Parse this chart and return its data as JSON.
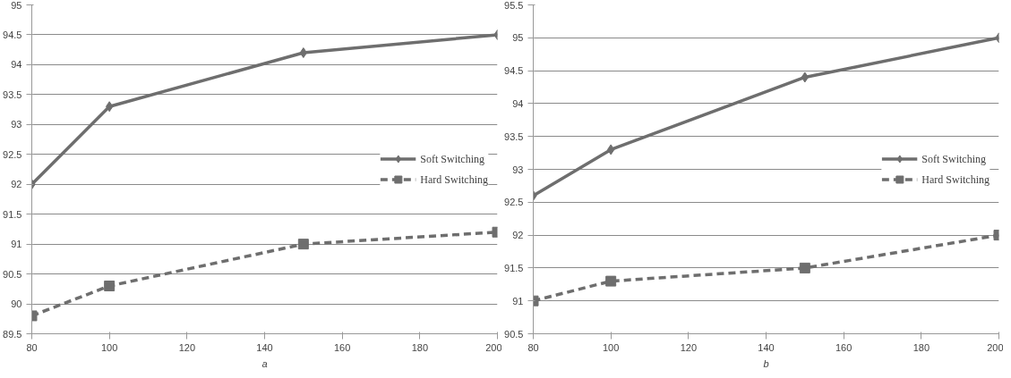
{
  "chart_data": [
    {
      "type": "line",
      "xlabel": "a",
      "x": [
        80,
        100,
        150,
        200
      ],
      "xlim": [
        80,
        200
      ],
      "xticks": [
        80,
        100,
        120,
        140,
        160,
        180,
        200
      ],
      "ylim": [
        89.5,
        95
      ],
      "yticks": [
        89.5,
        90,
        90.5,
        91,
        91.5,
        92,
        92.5,
        93,
        93.5,
        94,
        94.5,
        95
      ],
      "grid": "y",
      "legend": "right",
      "series": [
        {
          "name": "Soft Switching",
          "color": "#6e6e6e",
          "values": [
            92,
            93.3,
            94.2,
            94.5
          ],
          "marker": "diamond",
          "line_style": "solid"
        },
        {
          "name": "Hard Switching",
          "color": "#6e6e6e",
          "values": [
            89.8,
            90.3,
            91.0,
            91.2
          ],
          "marker": "square",
          "line_style": "dashed"
        }
      ]
    },
    {
      "type": "line",
      "xlabel": "b",
      "x": [
        80,
        100,
        150,
        200
      ],
      "xlim": [
        80,
        200
      ],
      "xticks": [
        80,
        100,
        120,
        140,
        160,
        180,
        200
      ],
      "ylim": [
        90.5,
        95.5
      ],
      "yticks": [
        90.5,
        91,
        91.5,
        92,
        92.5,
        93,
        93.5,
        94,
        94.5,
        95,
        95.5
      ],
      "grid": "y",
      "legend": "right",
      "series": [
        {
          "name": "Soft Switching",
          "color": "#6e6e6e",
          "values": [
            92.6,
            93.3,
            94.4,
            95.0
          ],
          "marker": "diamond",
          "line_style": "solid"
        },
        {
          "name": "Hard Switching",
          "color": "#6e6e6e",
          "values": [
            91.0,
            91.3,
            91.5,
            92.0
          ],
          "marker": "square",
          "line_style": "dashed"
        }
      ]
    }
  ]
}
